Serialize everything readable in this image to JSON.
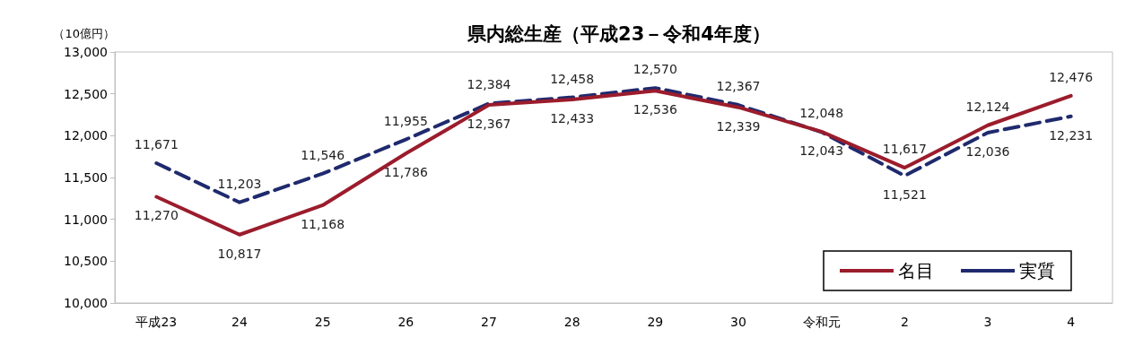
{
  "chart_data": {
    "type": "line",
    "title": "県内総生産（平成23－令和4年度）",
    "ylabel": "（10億円）",
    "categories": [
      "平成23",
      "24",
      "25",
      "26",
      "27",
      "28",
      "29",
      "30",
      "令和元",
      "2",
      "3",
      "4"
    ],
    "series": [
      {
        "name": "名目",
        "color": "#9b1c2c",
        "line_style": "solid",
        "values": [
          11270,
          10817,
          11168,
          11786,
          12367,
          12433,
          12536,
          12339,
          12048,
          11617,
          12124,
          12476
        ],
        "value_labels": [
          "11,270",
          "10,817",
          "11,168",
          "11,786",
          "12,367",
          "12,433",
          "12,536",
          "12,339",
          "12,048",
          "11,617",
          "12,124",
          "12,476"
        ]
      },
      {
        "name": "実質",
        "color": "#1f2a6e",
        "line_style": "dashed",
        "values": [
          11671,
          11203,
          11546,
          11955,
          12384,
          12458,
          12570,
          12367,
          12043,
          11521,
          12036,
          12231
        ],
        "value_labels": [
          "11,671",
          "11,203",
          "11,546",
          "11,955",
          "12,384",
          "12,458",
          "12,570",
          "12,367",
          "12,043",
          "11,521",
          "12,036",
          "12,231"
        ]
      }
    ],
    "ylim": [
      10000,
      13000
    ],
    "yticks": [
      {
        "value": 10000,
        "label": "10,000"
      },
      {
        "value": 10500,
        "label": "10,500"
      },
      {
        "value": 11000,
        "label": "11,000"
      },
      {
        "value": 11500,
        "label": "11,500"
      },
      {
        "value": 12000,
        "label": "12,000"
      },
      {
        "value": 12500,
        "label": "12,500"
      },
      {
        "value": 13000,
        "label": "13,000"
      }
    ],
    "grid": false,
    "legend": "bottom right",
    "marker": "none"
  }
}
